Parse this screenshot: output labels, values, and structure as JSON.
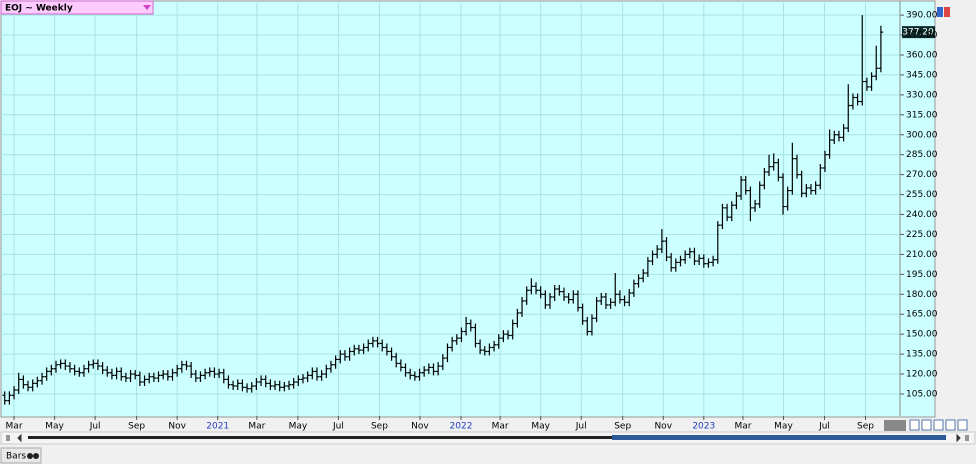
{
  "chart_data": {
    "type": "ohlc",
    "title": "EOJ ~ Weekly",
    "last_label": "377.20",
    "tab": "Bars",
    "color": "#000000",
    "background": "#ccffff",
    "grid": true,
    "open": [
      104,
      100,
      104,
      108,
      116,
      112,
      110,
      113,
      115,
      118,
      122,
      124,
      127,
      128,
      126,
      124,
      122,
      121,
      124,
      127,
      128,
      126,
      123,
      121,
      119,
      122,
      118,
      117,
      120,
      119,
      114,
      116,
      118,
      117,
      119,
      120,
      118,
      121,
      124,
      127,
      126,
      120,
      117,
      119,
      121,
      122,
      120,
      121,
      116,
      112,
      111,
      113,
      110,
      109,
      111,
      114,
      116,
      113,
      111,
      112,
      110,
      111,
      112,
      114,
      116,
      117,
      119,
      122,
      118,
      120,
      124,
      127,
      131,
      135,
      133,
      137,
      139,
      138,
      140,
      143,
      145,
      143,
      140,
      137,
      133,
      128,
      125,
      121,
      119,
      118,
      121,
      123,
      125,
      122,
      126,
      132,
      140,
      145,
      147,
      152,
      158,
      155,
      143,
      138,
      137,
      140,
      142,
      147,
      150,
      149,
      158,
      166,
      175,
      183,
      186,
      183,
      180,
      172,
      178,
      184,
      182,
      178,
      176,
      180,
      170,
      160,
      152,
      162,
      175,
      178,
      172,
      174,
      180,
      176,
      174,
      181,
      188,
      192,
      196,
      205,
      210,
      214,
      220,
      208,
      200,
      204,
      206,
      210,
      212,
      205,
      207,
      203,
      204,
      206,
      232,
      245,
      238,
      247,
      254,
      266,
      258,
      245,
      248,
      262,
      272,
      276,
      279,
      268,
      246,
      258,
      282,
      270,
      256,
      260,
      258,
      262,
      275,
      285,
      296,
      300,
      298,
      305,
      322,
      328,
      325,
      340,
      336,
      344,
      350
    ],
    "high": [
      107,
      107,
      111,
      121,
      119,
      115,
      116,
      118,
      121,
      125,
      127,
      130,
      131,
      131,
      129,
      127,
      125,
      127,
      130,
      131,
      131,
      129,
      126,
      124,
      125,
      125,
      121,
      123,
      123,
      122,
      119,
      121,
      121,
      122,
      123,
      123,
      124,
      127,
      130,
      130,
      129,
      123,
      122,
      124,
      125,
      125,
      124,
      124,
      119,
      115,
      116,
      116,
      113,
      114,
      117,
      119,
      119,
      116,
      115,
      115,
      114,
      115,
      117,
      119,
      120,
      122,
      125,
      125,
      123,
      127,
      130,
      134,
      138,
      138,
      140,
      142,
      142,
      143,
      146,
      148,
      148,
      146,
      143,
      140,
      136,
      131,
      128,
      124,
      122,
      124,
      126,
      128,
      128,
      129,
      135,
      143,
      148,
      150,
      155,
      163,
      161,
      158,
      146,
      141,
      143,
      145,
      150,
      153,
      153,
      161,
      169,
      178,
      186,
      192,
      189,
      186,
      183,
      181,
      187,
      187,
      185,
      181,
      183,
      183,
      173,
      163,
      165,
      178,
      181,
      181,
      177,
      196,
      183,
      179,
      184,
      191,
      195,
      199,
      208,
      213,
      217,
      229,
      223,
      211,
      207,
      209,
      213,
      215,
      215,
      210,
      210,
      207,
      209,
      235,
      248,
      248,
      250,
      257,
      269,
      269,
      261,
      251,
      265,
      275,
      285,
      286,
      282,
      271,
      261,
      294,
      285,
      273,
      263,
      263,
      265,
      278,
      288,
      304,
      303,
      303,
      308,
      338,
      331,
      331,
      390,
      343,
      347,
      367,
      382
    ],
    "low": [
      97,
      97,
      101,
      105,
      109,
      107,
      107,
      110,
      112,
      115,
      119,
      121,
      124,
      123,
      121,
      119,
      118,
      118,
      121,
      124,
      123,
      120,
      118,
      116,
      116,
      115,
      114,
      114,
      116,
      111,
      111,
      113,
      114,
      114,
      116,
      115,
      115,
      118,
      121,
      123,
      117,
      114,
      114,
      116,
      118,
      117,
      117,
      113,
      109,
      108,
      108,
      107,
      106,
      106,
      108,
      111,
      110,
      108,
      108,
      107,
      107,
      108,
      109,
      111,
      113,
      114,
      116,
      115,
      115,
      117,
      121,
      124,
      128,
      130,
      130,
      134,
      135,
      135,
      137,
      140,
      140,
      137,
      134,
      130,
      125,
      122,
      118,
      116,
      115,
      115,
      118,
      120,
      119,
      119,
      123,
      129,
      137,
      142,
      144,
      149,
      152,
      140,
      135,
      134,
      134,
      137,
      139,
      144,
      146,
      146,
      155,
      163,
      172,
      180,
      180,
      177,
      169,
      169,
      175,
      179,
      175,
      173,
      173,
      167,
      157,
      149,
      149,
      159,
      172,
      169,
      169,
      171,
      173,
      171,
      171,
      178,
      185,
      189,
      193,
      202,
      207,
      211,
      205,
      197,
      197,
      201,
      203,
      207,
      202,
      202,
      200,
      200,
      201,
      203,
      229,
      235,
      235,
      244,
      251,
      255,
      235,
      242,
      245,
      259,
      269,
      273,
      265,
      240,
      243,
      255,
      267,
      253,
      253,
      255,
      255,
      259,
      272,
      282,
      293,
      295,
      295,
      302,
      319,
      322,
      322,
      333,
      333,
      341,
      347
    ],
    "close": [
      100,
      104,
      108,
      116,
      112,
      110,
      113,
      115,
      118,
      122,
      124,
      127,
      128,
      126,
      124,
      122,
      121,
      124,
      127,
      128,
      126,
      123,
      121,
      119,
      122,
      118,
      117,
      120,
      119,
      114,
      116,
      118,
      117,
      119,
      120,
      118,
      121,
      124,
      127,
      126,
      120,
      117,
      119,
      121,
      122,
      120,
      121,
      116,
      112,
      111,
      113,
      110,
      109,
      111,
      114,
      116,
      113,
      111,
      112,
      110,
      111,
      112,
      114,
      116,
      117,
      119,
      122,
      118,
      120,
      124,
      127,
      131,
      135,
      133,
      137,
      139,
      138,
      140,
      143,
      145,
      143,
      140,
      137,
      133,
      128,
      125,
      121,
      119,
      118,
      121,
      123,
      125,
      122,
      126,
      132,
      140,
      145,
      147,
      152,
      158,
      155,
      143,
      138,
      137,
      140,
      142,
      147,
      150,
      149,
      158,
      166,
      175,
      183,
      186,
      183,
      180,
      172,
      178,
      184,
      182,
      178,
      176,
      180,
      170,
      160,
      152,
      162,
      175,
      178,
      172,
      174,
      180,
      176,
      174,
      181,
      188,
      192,
      196,
      205,
      210,
      214,
      220,
      208,
      200,
      204,
      206,
      210,
      212,
      205,
      207,
      203,
      204,
      206,
      232,
      245,
      238,
      247,
      254,
      266,
      258,
      245,
      248,
      262,
      272,
      276,
      279,
      268,
      246,
      258,
      282,
      270,
      256,
      260,
      258,
      262,
      275,
      285,
      296,
      300,
      298,
      305,
      322,
      328,
      325,
      340,
      336,
      344,
      350,
      377.2
    ],
    "ylim": [
      88.45,
      399.1
    ],
    "yticks": [
      {
        "value": 105,
        "label": "105.00"
      },
      {
        "value": 120,
        "label": "120.00"
      },
      {
        "value": 135,
        "label": "135.00"
      },
      {
        "value": 150,
        "label": "150.00"
      },
      {
        "value": 165,
        "label": "165.00"
      },
      {
        "value": 180,
        "label": "180.00"
      },
      {
        "value": 195,
        "label": "195.00"
      },
      {
        "value": 210,
        "label": "210.00"
      },
      {
        "value": 225,
        "label": "225.00"
      },
      {
        "value": 240,
        "label": "240.00"
      },
      {
        "value": 255,
        "label": "255.00"
      },
      {
        "value": 270,
        "label": "270.00"
      },
      {
        "value": 285,
        "label": "285.00"
      },
      {
        "value": 300,
        "label": "300.00"
      },
      {
        "value": 315,
        "label": "315.00"
      },
      {
        "value": 330,
        "label": "330.00"
      },
      {
        "value": 345,
        "label": "345.00"
      },
      {
        "value": 360,
        "label": "360.00"
      },
      {
        "value": 375,
        "label": "375.00"
      },
      {
        "value": 390,
        "label": "390.00"
      }
    ],
    "xlim": [
      -0.8,
      192.1
    ],
    "xticks": [
      {
        "value": 2,
        "label": "Mar"
      },
      {
        "value": 10.7,
        "label": "May"
      },
      {
        "value": 19.4,
        "label": "Jul"
      },
      {
        "value": 28.3,
        "label": "Sep"
      },
      {
        "value": 37,
        "label": "Nov"
      },
      {
        "value": 45.7,
        "label": "2021"
      },
      {
        "value": 54.1,
        "label": "Mar"
      },
      {
        "value": 62.9,
        "label": "May"
      },
      {
        "value": 71.6,
        "label": "Jul"
      },
      {
        "value": 80.4,
        "label": "Sep"
      },
      {
        "value": 89.1,
        "label": "Nov"
      },
      {
        "value": 97.9,
        "label": "2022"
      },
      {
        "value": 106.3,
        "label": "Mar"
      },
      {
        "value": 115,
        "label": "May"
      },
      {
        "value": 123.7,
        "label": "Jul"
      },
      {
        "value": 132.6,
        "label": "Sep"
      },
      {
        "value": 141.3,
        "label": "Nov"
      },
      {
        "value": 150,
        "label": "2023"
      },
      {
        "value": 158.4,
        "label": "Mar"
      },
      {
        "value": 167.1,
        "label": "May"
      },
      {
        "value": 175.9,
        "label": "Jul"
      },
      {
        "value": 184.7,
        "label": "Sep"
      }
    ]
  }
}
